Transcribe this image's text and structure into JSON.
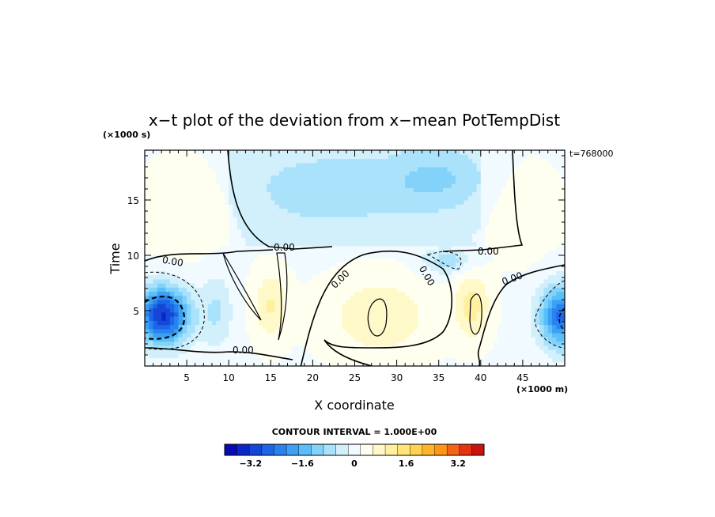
{
  "chart_data": {
    "type": "heatmap",
    "title": "x−t plot of the deviation from x−mean PotTempDist",
    "xlabel": "X coordinate",
    "ylabel": "Time",
    "x_units": "(×1000 m)",
    "y_units": "(×1000 s)",
    "xlim": [
      0,
      50
    ],
    "ylim": [
      0,
      19.5
    ],
    "x_ticks": [
      5,
      10,
      15,
      20,
      25,
      30,
      35,
      40,
      45
    ],
    "y_ticks": [
      5,
      10,
      15
    ],
    "time_stamp": "t=768000",
    "contour_interval_label": "CONTOUR INTERVAL = 1.000E+00",
    "contour_labels": [
      "0.00",
      "0.00",
      "0.00",
      "0.00",
      "0.00",
      "0.00",
      "0.00"
    ],
    "colorbar": {
      "min": -4,
      "max": 4,
      "ticks": [
        -3.2,
        -1.6,
        0,
        1.6,
        3.2
      ],
      "tick_labels": [
        "−3.2",
        "−1.6",
        "0",
        "1.6",
        "3.2"
      ],
      "colors": [
        "#0a0ab4",
        "#0a28c8",
        "#1446d7",
        "#1e64e6",
        "#2882f0",
        "#3ca0f5",
        "#5abef8",
        "#82d2fa",
        "#aae2fb",
        "#d2f0fc",
        "#f0faff",
        "#fffff0",
        "#fff8c8",
        "#fff0a0",
        "#ffe478",
        "#ffd250",
        "#ffb428",
        "#ff9619",
        "#f56414",
        "#e6320f",
        "#c8140a"
      ]
    },
    "field_blobs": [
      {
        "x": 2.2,
        "y": 4.6,
        "sx": 3.0,
        "sy": 2.6,
        "v": -3.6
      },
      {
        "x": 49.5,
        "y": 4.5,
        "sx": 2.5,
        "sy": 2.8,
        "v": -2.8
      },
      {
        "x": 8.5,
        "y": 5.0,
        "sx": 2.0,
        "sy": 3.5,
        "v": -0.8
      },
      {
        "x": 15,
        "y": 5.5,
        "sx": 2.0,
        "sy": 3.0,
        "v": 0.9
      },
      {
        "x": 28,
        "y": 4.5,
        "sx": 6.0,
        "sy": 3.5,
        "v": 0.8
      },
      {
        "x": 39,
        "y": 5.5,
        "sx": 2.0,
        "sy": 3.0,
        "v": 1.0
      },
      {
        "x": 22,
        "y": 16,
        "sx": 10.0,
        "sy": 3.5,
        "v": -0.7
      },
      {
        "x": 35,
        "y": 17,
        "sx": 6.0,
        "sy": 3.0,
        "v": -0.8
      },
      {
        "x": 5,
        "y": 14,
        "sx": 5.0,
        "sy": 4.0,
        "v": 0.45
      },
      {
        "x": 45,
        "y": 14,
        "sx": 4.0,
        "sy": 4.0,
        "v": 0.35
      },
      {
        "x": 36,
        "y": 9.5,
        "sx": 3.0,
        "sy": 1.2,
        "v": -1.0
      }
    ]
  }
}
